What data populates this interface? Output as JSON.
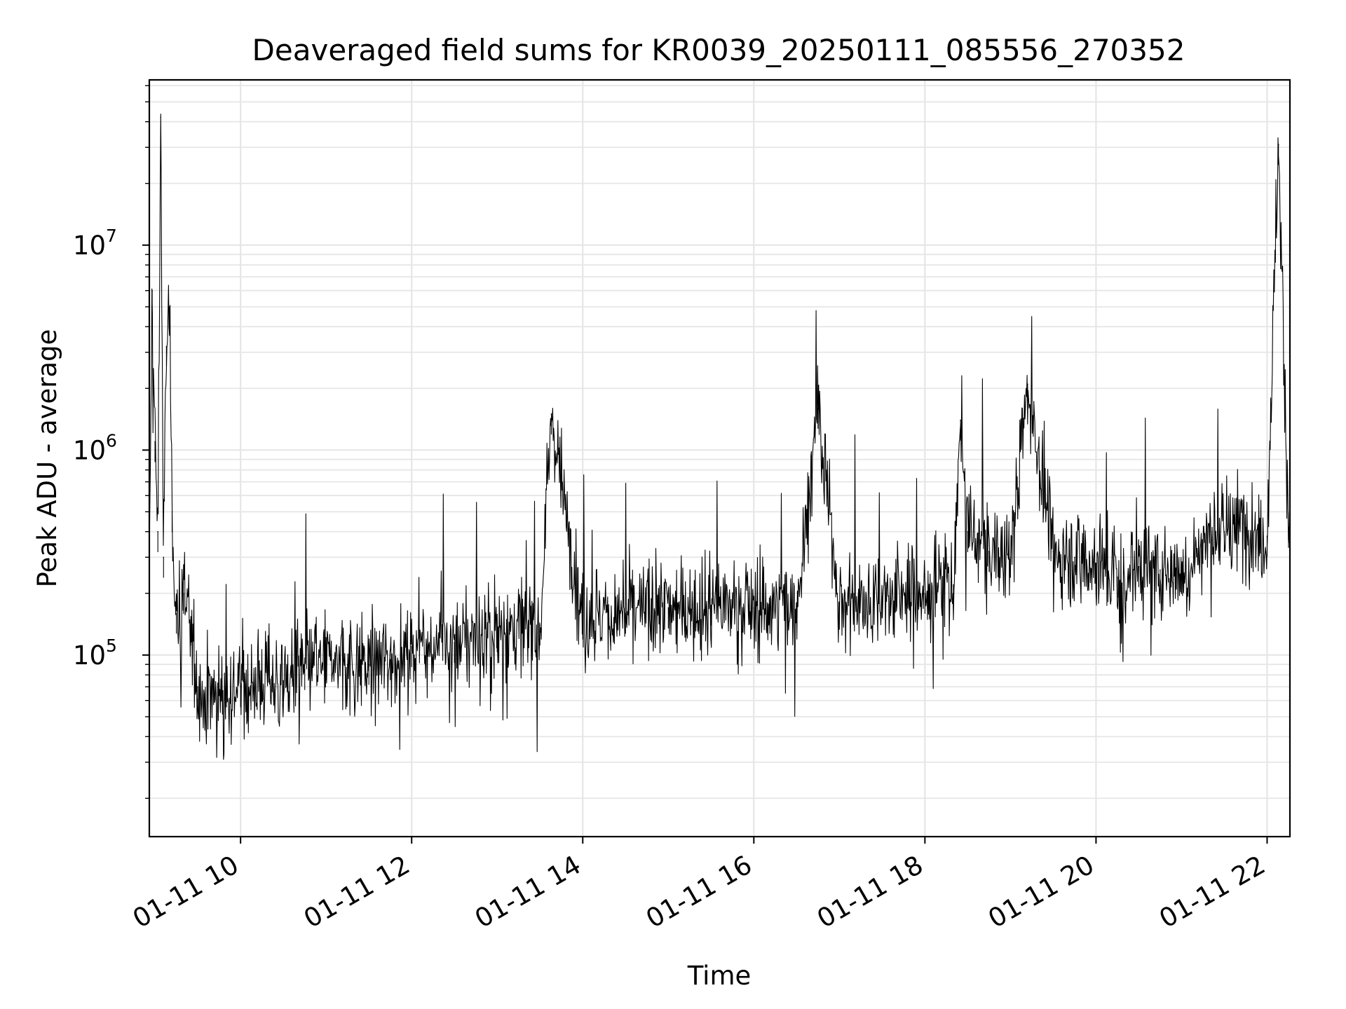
{
  "chart_data": {
    "type": "line",
    "title": "Deaveraged field sums for KR0039_20250111_085556_270352",
    "xlabel": "Time",
    "ylabel": "Peak ADU - average",
    "yscale": "log",
    "ylim": [
      13000,
      64000000
    ],
    "xlim": [
      "2025-01-11 08:56",
      "2025-01-11 22:16"
    ],
    "x_ticks": [
      {
        "t": "2025-01-11 10:00",
        "label": "01-11 10"
      },
      {
        "t": "2025-01-11 12:00",
        "label": "01-11 12"
      },
      {
        "t": "2025-01-11 14:00",
        "label": "01-11 14"
      },
      {
        "t": "2025-01-11 16:00",
        "label": "01-11 16"
      },
      {
        "t": "2025-01-11 18:00",
        "label": "01-11 18"
      },
      {
        "t": "2025-01-11 20:00",
        "label": "01-11 20"
      },
      {
        "t": "2025-01-11 22:00",
        "label": "01-11 22"
      }
    ],
    "y_ticks": [
      {
        "value": 100000,
        "base": "10",
        "exp": "5"
      },
      {
        "value": 1000000,
        "base": "10",
        "exp": "6"
      },
      {
        "value": 10000000,
        "base": "10",
        "exp": "7"
      }
    ],
    "grid": true,
    "line_color": "#000000",
    "grid_color": "#e6e6e6",
    "series": [
      {
        "x": [
          "2025-01-11 08:56",
          "2025-01-11 08:58",
          "2025-01-11 09:00",
          "2025-01-11 09:02",
          "2025-01-11 09:04",
          "2025-01-11 09:06",
          "2025-01-11 09:08",
          "2025-01-11 09:10",
          "2025-01-11 09:12",
          "2025-01-11 09:15",
          "2025-01-11 09:20",
          "2025-01-11 09:25",
          "2025-01-11 09:30",
          "2025-01-11 09:35",
          "2025-01-11 09:40",
          "2025-01-11 09:50",
          "2025-01-11 10:00",
          "2025-01-11 10:15",
          "2025-01-11 10:30",
          "2025-01-11 10:45",
          "2025-01-11 11:00",
          "2025-01-11 11:15",
          "2025-01-11 11:30",
          "2025-01-11 11:45",
          "2025-01-11 12:00",
          "2025-01-11 12:30",
          "2025-01-11 13:00",
          "2025-01-11 13:30",
          "2025-01-11 13:38",
          "2025-01-11 14:00",
          "2025-01-11 14:30",
          "2025-01-11 15:00",
          "2025-01-11 15:30",
          "2025-01-11 16:00",
          "2025-01-11 16:30",
          "2025-01-11 16:45",
          "2025-01-11 17:00",
          "2025-01-11 17:30",
          "2025-01-11 18:00",
          "2025-01-11 18:20",
          "2025-01-11 18:25",
          "2025-01-11 18:30",
          "2025-01-11 18:45",
          "2025-01-11 19:00",
          "2025-01-11 19:12",
          "2025-01-11 19:30",
          "2025-01-11 19:45",
          "2025-01-11 20:00",
          "2025-01-11 20:15",
          "2025-01-11 20:30",
          "2025-01-11 20:45",
          "2025-01-11 21:00",
          "2025-01-11 21:15",
          "2025-01-11 21:30",
          "2025-01-11 21:45",
          "2025-01-11 22:00",
          "2025-01-11 22:08",
          "2025-01-11 22:15"
        ],
        "y": [
          220000,
          6000000,
          1100000,
          400000,
          42000000,
          300000,
          3200000,
          5000000,
          500000,
          160000,
          200000,
          140000,
          70000,
          60000,
          65000,
          70000,
          70000,
          75000,
          75000,
          85000,
          95000,
          90000,
          90000,
          95000,
          110000,
          115000,
          130000,
          140000,
          1500000,
          150000,
          160000,
          170000,
          175000,
          170000,
          180000,
          1600000,
          180000,
          190000,
          200000,
          220000,
          1400000,
          400000,
          320000,
          300000,
          2100000,
          320000,
          300000,
          280000,
          240000,
          270000,
          260000,
          250000,
          350000,
          400000,
          420000,
          380000,
          31000000,
          420000
        ]
      }
    ]
  }
}
